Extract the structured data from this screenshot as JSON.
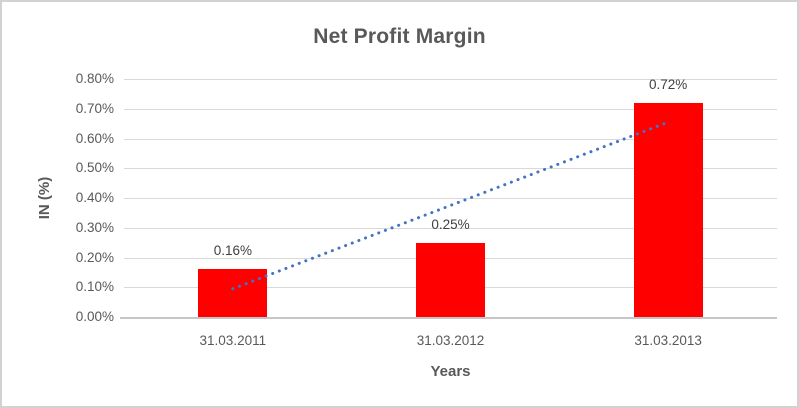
{
  "chart_data": {
    "type": "bar",
    "title": "Net Profit Margin",
    "xlabel": "Years",
    "ylabel": "IN (%)",
    "categories": [
      "31.03.2011",
      "31.03.2012",
      "31.03.2013"
    ],
    "values": [
      0.16,
      0.25,
      0.72
    ],
    "data_labels": [
      "0.16%",
      "0.25%",
      "0.72%"
    ],
    "ylim": [
      0,
      0.8
    ],
    "ytick_labels": [
      "0.00%",
      "0.10%",
      "0.20%",
      "0.30%",
      "0.40%",
      "0.50%",
      "0.60%",
      "0.70%",
      "0.80%"
    ],
    "grid": true,
    "legend": false,
    "trendline": {
      "type": "linear",
      "style": "dotted",
      "start_value": 0.095,
      "end_value": 0.655
    }
  },
  "colors": {
    "bar": "#FF0000",
    "trendline": "#4472C4",
    "gridline": "#D9D9D9",
    "axis_line": "#C6C6C6",
    "title_text": "#595959",
    "axis_title_text": "#595959",
    "tick_text": "#595959",
    "data_label_text": "#404040",
    "frame_border": "#D2D2D2"
  }
}
